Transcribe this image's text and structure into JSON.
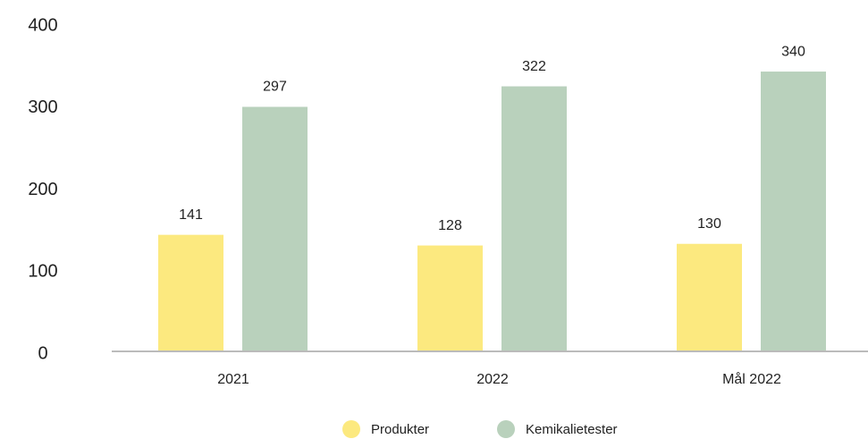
{
  "chart_data": {
    "type": "bar",
    "categories": [
      "2021",
      "2022",
      "Mål 2022"
    ],
    "series": [
      {
        "name": "Produkter",
        "color": "#fce97f",
        "values": [
          141,
          128,
          130
        ]
      },
      {
        "name": "Kemikalietester",
        "color": "#b9d1bc",
        "values": [
          297,
          322,
          340
        ]
      }
    ],
    "ylim": [
      0,
      400
    ],
    "yticks": [
      0,
      100,
      200,
      300,
      400
    ],
    "grid": false,
    "legend": "bottom"
  }
}
